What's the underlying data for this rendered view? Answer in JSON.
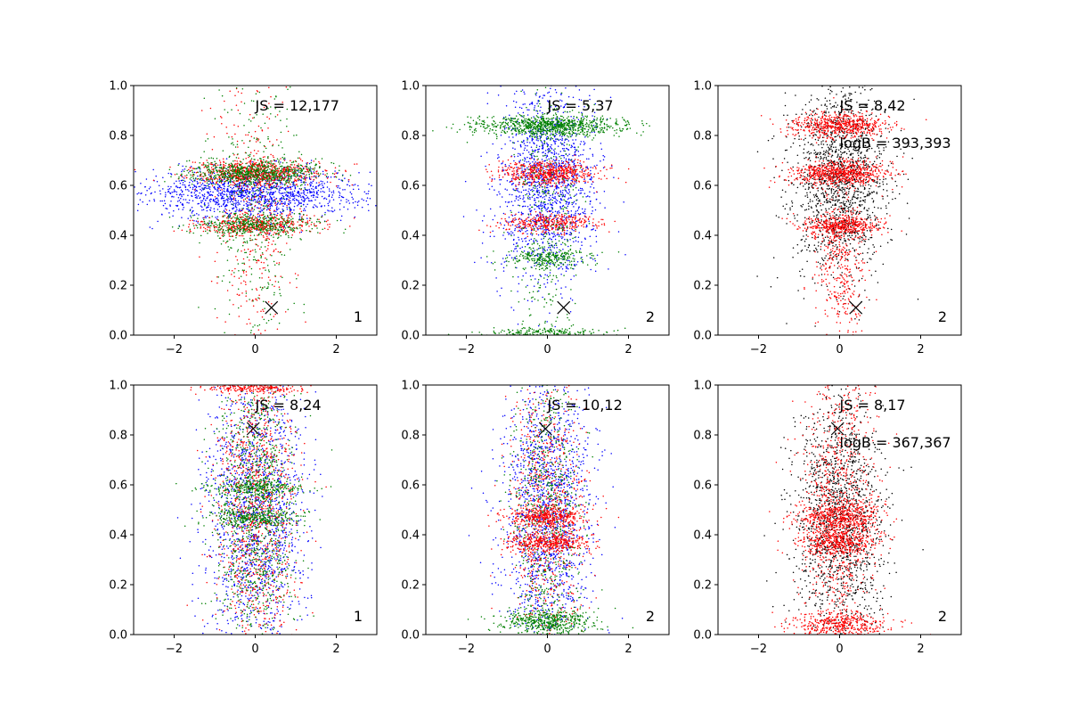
{
  "chart_data": [
    {
      "type": "scatter",
      "panel": "row1-col1",
      "xlim": [
        -3,
        3
      ],
      "ylim": [
        0,
        1
      ],
      "xticks": [
        "−2",
        "0",
        "2"
      ],
      "yticks": [
        "0.0",
        "0.2",
        "0.4",
        "0.6",
        "0.8",
        "1.0"
      ],
      "grid": false,
      "series_colors": [
        "#0000ff",
        "#ff0000",
        "#008000"
      ],
      "bands": [
        {
          "y": 0.57,
          "x_spread": 1.3,
          "y_spread": 0.05,
          "n": 1400,
          "color": "#0000ff"
        },
        {
          "y": 0.65,
          "x_spread": 0.8,
          "y_spread": 0.025,
          "n": 700,
          "color": "#ff0000"
        },
        {
          "y": 0.65,
          "x_spread": 0.8,
          "y_spread": 0.025,
          "n": 700,
          "color": "#008000"
        },
        {
          "y": 0.44,
          "x_spread": 0.8,
          "y_spread": 0.02,
          "n": 400,
          "color": "#ff0000"
        },
        {
          "y": 0.44,
          "x_spread": 0.8,
          "y_spread": 0.02,
          "n": 400,
          "color": "#008000"
        },
        {
          "y": 0.5,
          "x_spread": 0.5,
          "y_spread": 0.3,
          "n": 400,
          "color": "#ff0000"
        },
        {
          "y": 0.5,
          "x_spread": 0.5,
          "y_spread": 0.3,
          "n": 400,
          "color": "#008000"
        }
      ],
      "marker": {
        "x": 0.4,
        "y": 0.11
      },
      "annotations": [
        "JS = 12,177"
      ],
      "label": "1"
    },
    {
      "type": "scatter",
      "panel": "row1-col2",
      "xlim": [
        -3,
        3
      ],
      "ylim": [
        0,
        1
      ],
      "xticks": [
        "−2",
        "0",
        "2"
      ],
      "yticks": [
        "0.0",
        "0.2",
        "0.4",
        "0.6",
        "0.8",
        "1.0"
      ],
      "grid": false,
      "series_colors": [
        "#0000ff",
        "#ff0000",
        "#008000"
      ],
      "bands": [
        {
          "y": 0.6,
          "x_spread": 0.6,
          "y_spread": 0.2,
          "n": 1500,
          "color": "#0000ff"
        },
        {
          "y": 0.84,
          "x_spread": 0.9,
          "y_spread": 0.02,
          "n": 900,
          "color": "#008000"
        },
        {
          "y": 0.65,
          "x_spread": 0.6,
          "y_spread": 0.025,
          "n": 600,
          "color": "#ff0000"
        },
        {
          "y": 0.45,
          "x_spread": 0.6,
          "y_spread": 0.02,
          "n": 350,
          "color": "#ff0000"
        },
        {
          "y": 0.31,
          "x_spread": 0.5,
          "y_spread": 0.02,
          "n": 250,
          "color": "#008000"
        },
        {
          "y": 0.01,
          "x_spread": 0.8,
          "y_spread": 0.01,
          "n": 200,
          "color": "#008000"
        },
        {
          "y": 0.5,
          "x_spread": 0.4,
          "y_spread": 0.3,
          "n": 400,
          "color": "#008000"
        }
      ],
      "marker": {
        "x": 0.4,
        "y": 0.11
      },
      "annotations": [
        "JS = 5,37"
      ],
      "label": "2"
    },
    {
      "type": "scatter",
      "panel": "row1-col3",
      "xlim": [
        -3,
        3
      ],
      "ylim": [
        0,
        1
      ],
      "xticks": [
        "−2",
        "0",
        "2"
      ],
      "yticks": [
        "0.0",
        "0.2",
        "0.4",
        "0.6",
        "0.8",
        "1.0"
      ],
      "grid": false,
      "series_colors": [
        "#000000",
        "#ff0000"
      ],
      "bands": [
        {
          "y": 0.62,
          "x_spread": 0.6,
          "y_spread": 0.2,
          "n": 1500,
          "color": "#000000"
        },
        {
          "y": 0.84,
          "x_spread": 0.6,
          "y_spread": 0.025,
          "n": 600,
          "color": "#ff0000"
        },
        {
          "y": 0.65,
          "x_spread": 0.6,
          "y_spread": 0.025,
          "n": 700,
          "color": "#ff0000"
        },
        {
          "y": 0.44,
          "x_spread": 0.5,
          "y_spread": 0.02,
          "n": 400,
          "color": "#ff0000"
        },
        {
          "y": 0.3,
          "x_spread": 0.3,
          "y_spread": 0.15,
          "n": 400,
          "color": "#ff0000"
        }
      ],
      "marker": {
        "x": 0.4,
        "y": 0.11
      },
      "annotations": [
        "JS = 8,42",
        "logB = 393,393"
      ],
      "label": "2"
    },
    {
      "type": "scatter",
      "panel": "row2-col1",
      "xlim": [
        -3,
        3
      ],
      "ylim": [
        0,
        1
      ],
      "xticks": [
        "−2",
        "0",
        "2"
      ],
      "yticks": [
        "0.0",
        "0.2",
        "0.4",
        "0.6",
        "0.8",
        "1.0"
      ],
      "grid": false,
      "series_colors": [
        "#0000ff",
        "#ff0000",
        "#008000"
      ],
      "bands": [
        {
          "y": 0.5,
          "x_spread": 0.6,
          "y_spread": 0.28,
          "n": 1500,
          "color": "#0000ff"
        },
        {
          "y": 0.5,
          "x_spread": 0.5,
          "y_spread": 0.3,
          "n": 1100,
          "color": "#ff0000"
        },
        {
          "y": 0.5,
          "x_spread": 0.5,
          "y_spread": 0.3,
          "n": 1100,
          "color": "#008000"
        },
        {
          "y": 0.59,
          "x_spread": 0.6,
          "y_spread": 0.015,
          "n": 250,
          "color": "#008000"
        },
        {
          "y": 0.47,
          "x_spread": 0.6,
          "y_spread": 0.015,
          "n": 250,
          "color": "#008000"
        },
        {
          "y": 0.99,
          "x_spread": 0.6,
          "y_spread": 0.01,
          "n": 200,
          "color": "#ff0000"
        }
      ],
      "marker": {
        "x": -0.05,
        "y": 0.825
      },
      "annotations": [
        "JS = 8,24"
      ],
      "label": "1"
    },
    {
      "type": "scatter",
      "panel": "row2-col2",
      "xlim": [
        -3,
        3
      ],
      "ylim": [
        0,
        1
      ],
      "xticks": [
        "−2",
        "0",
        "2"
      ],
      "yticks": [
        "0.0",
        "0.2",
        "0.4",
        "0.6",
        "0.8",
        "1.0"
      ],
      "grid": false,
      "series_colors": [
        "#0000ff",
        "#ff0000",
        "#008000"
      ],
      "bands": [
        {
          "y": 0.5,
          "x_spread": 0.55,
          "y_spread": 0.28,
          "n": 1500,
          "color": "#0000ff"
        },
        {
          "y": 0.5,
          "x_spread": 0.45,
          "y_spread": 0.3,
          "n": 800,
          "color": "#ff0000"
        },
        {
          "y": 0.5,
          "x_spread": 0.45,
          "y_spread": 0.3,
          "n": 700,
          "color": "#008000"
        },
        {
          "y": 0.47,
          "x_spread": 0.5,
          "y_spread": 0.02,
          "n": 400,
          "color": "#ff0000"
        },
        {
          "y": 0.37,
          "x_spread": 0.5,
          "y_spread": 0.02,
          "n": 400,
          "color": "#ff0000"
        },
        {
          "y": 0.05,
          "x_spread": 0.6,
          "y_spread": 0.025,
          "n": 500,
          "color": "#008000"
        }
      ],
      "marker": {
        "x": -0.05,
        "y": 0.825
      },
      "annotations": [
        "JS = 10,12"
      ],
      "label": "2"
    },
    {
      "type": "scatter",
      "panel": "row2-col3",
      "xlim": [
        -3,
        3
      ],
      "ylim": [
        0,
        1
      ],
      "xticks": [
        "−2",
        "0",
        "2"
      ],
      "yticks": [
        "0.0",
        "0.2",
        "0.4",
        "0.6",
        "0.8",
        "1.0"
      ],
      "grid": false,
      "series_colors": [
        "#000000",
        "#ff0000"
      ],
      "bands": [
        {
          "y": 0.45,
          "x_spread": 0.55,
          "y_spread": 0.25,
          "n": 1500,
          "color": "#000000"
        },
        {
          "y": 0.5,
          "x_spread": 0.45,
          "y_spread": 0.3,
          "n": 900,
          "color": "#ff0000"
        },
        {
          "y": 0.47,
          "x_spread": 0.5,
          "y_spread": 0.03,
          "n": 500,
          "color": "#ff0000"
        },
        {
          "y": 0.37,
          "x_spread": 0.5,
          "y_spread": 0.025,
          "n": 400,
          "color": "#ff0000"
        },
        {
          "y": 0.04,
          "x_spread": 0.6,
          "y_spread": 0.025,
          "n": 400,
          "color": "#ff0000"
        }
      ],
      "marker": {
        "x": -0.05,
        "y": 0.825
      },
      "annotations": [
        "JS = 8,17",
        "logB = 367,367"
      ],
      "label": "2"
    }
  ]
}
